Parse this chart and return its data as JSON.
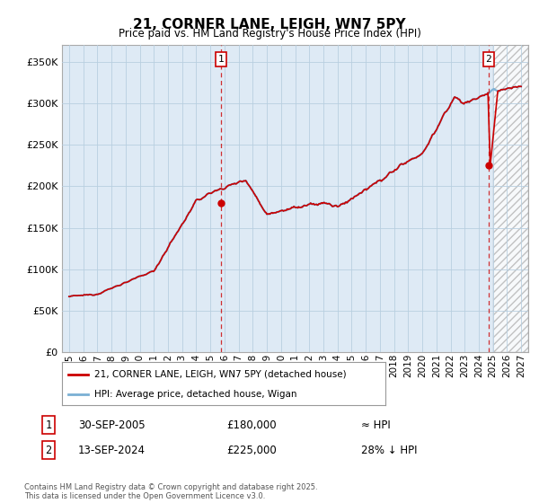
{
  "title": "21, CORNER LANE, LEIGH, WN7 5PY",
  "subtitle": "Price paid vs. HM Land Registry's House Price Index (HPI)",
  "legend_line1": "21, CORNER LANE, LEIGH, WN7 5PY (detached house)",
  "legend_line2": "HPI: Average price, detached house, Wigan",
  "annotation1_label": "1",
  "annotation1_date": "30-SEP-2005",
  "annotation1_price": "£180,000",
  "annotation1_hpi": "≈ HPI",
  "annotation1_year": 2005.75,
  "annotation1_value": 180000,
  "annotation2_label": "2",
  "annotation2_date": "13-SEP-2024",
  "annotation2_price": "£225,000",
  "annotation2_hpi": "28% ↓ HPI",
  "annotation2_year": 2024.7,
  "annotation2_value": 225000,
  "copyright_text": "Contains HM Land Registry data © Crown copyright and database right 2025.\nThis data is licensed under the Open Government Licence v3.0.",
  "line_color_red": "#cc0000",
  "line_color_blue": "#7ab0d4",
  "plot_bg_color": "#deeaf5",
  "background_color": "#ffffff",
  "grid_color": "#b8cfe0",
  "hatch_region_start": 2025.0,
  "ylim": [
    0,
    370000
  ],
  "yticks": [
    0,
    50000,
    100000,
    150000,
    200000,
    250000,
    300000,
    350000
  ],
  "xlim_start": 1994.5,
  "xlim_end": 2027.5,
  "xtick_start": 1995,
  "xtick_end": 2027
}
